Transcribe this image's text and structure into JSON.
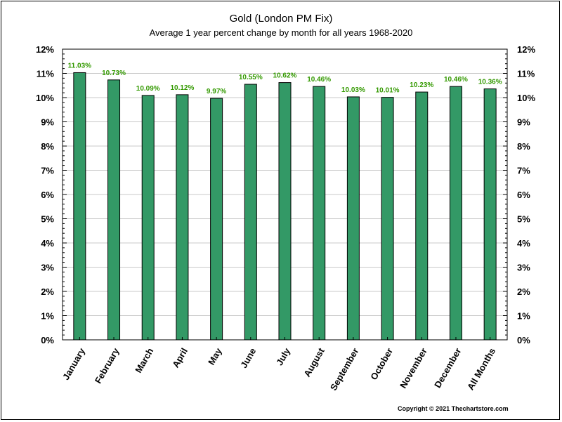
{
  "chart_data": {
    "type": "bar",
    "title": "Gold (London PM Fix)",
    "subtitle": "Average 1 year percent change by month for all years 1968-2020",
    "categories": [
      "January",
      "February",
      "March",
      "April",
      "May",
      "June",
      "July",
      "August",
      "September",
      "October",
      "November",
      "December",
      "All Months"
    ],
    "values": [
      11.03,
      10.73,
      10.09,
      10.12,
      9.97,
      10.55,
      10.62,
      10.46,
      10.03,
      10.01,
      10.23,
      10.46,
      10.36
    ],
    "data_labels": [
      "11.03%",
      "10.73%",
      "10.09%",
      "10.12%",
      "9.97%",
      "10.55%",
      "10.62%",
      "10.46%",
      "10.03%",
      "10.01%",
      "10.23%",
      "10.46%",
      "10.36%"
    ],
    "ylim": [
      0,
      12
    ],
    "yticks": [
      "0%",
      "1%",
      "2%",
      "3%",
      "4%",
      "5%",
      "6%",
      "7%",
      "8%",
      "9%",
      "10%",
      "11%",
      "12%"
    ],
    "xlabel": "",
    "ylabel": "",
    "grid": true,
    "bar_color": "#339966",
    "label_color": "#339900"
  },
  "footer": {
    "copyright": "Copyright © 2021 Thechartstore.com"
  }
}
